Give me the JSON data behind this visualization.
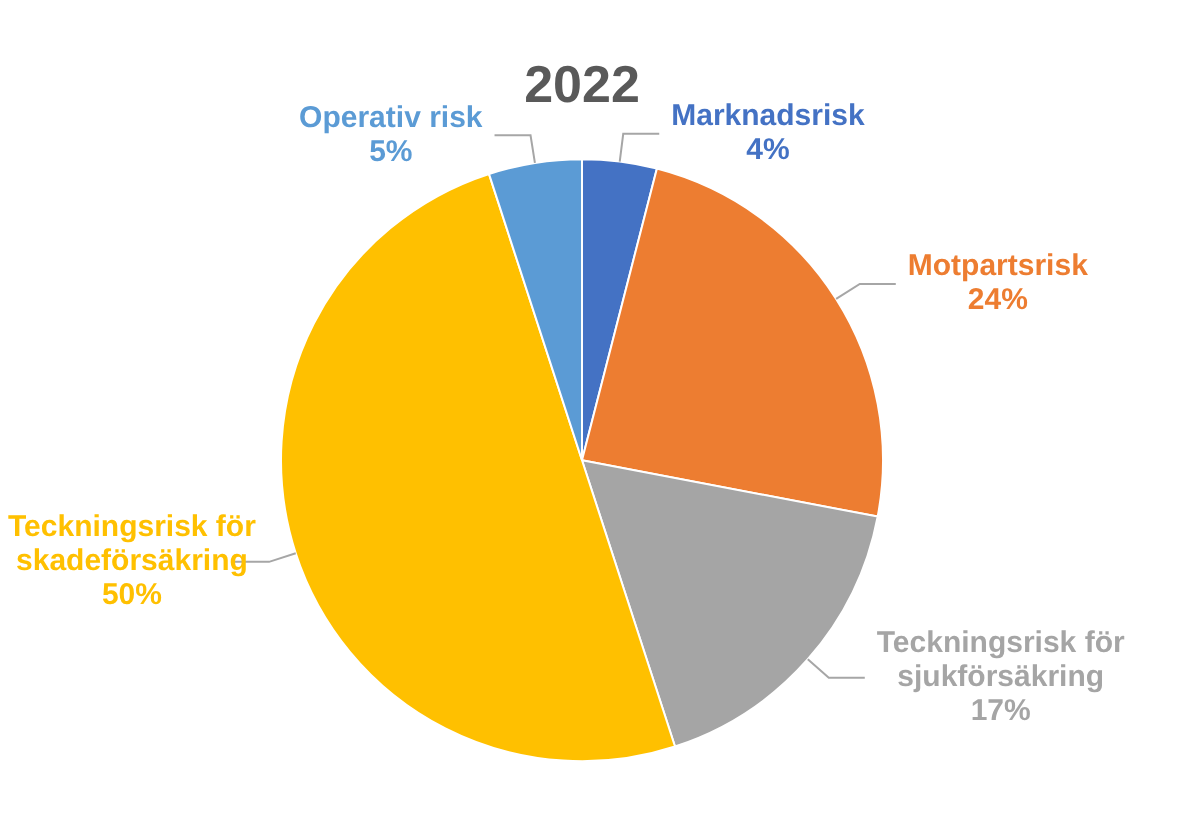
{
  "chart_data": {
    "type": "pie",
    "title": "2022",
    "categories": [
      "Marknadsrisk",
      "Motpartsrisk",
      "Teckningsrisk för sjukförsäkring",
      "Teckningsrisk för skadeförsäkring",
      "Operativ risk"
    ],
    "values": [
      4,
      24,
      17,
      50,
      5
    ],
    "colors": [
      "#4472c4",
      "#ed7d31",
      "#a5a5a5",
      "#ffc000",
      "#5b9bd5"
    ],
    "value_labels": [
      "4%",
      "24%",
      "17%",
      "50%",
      "5%"
    ],
    "legend": false
  }
}
